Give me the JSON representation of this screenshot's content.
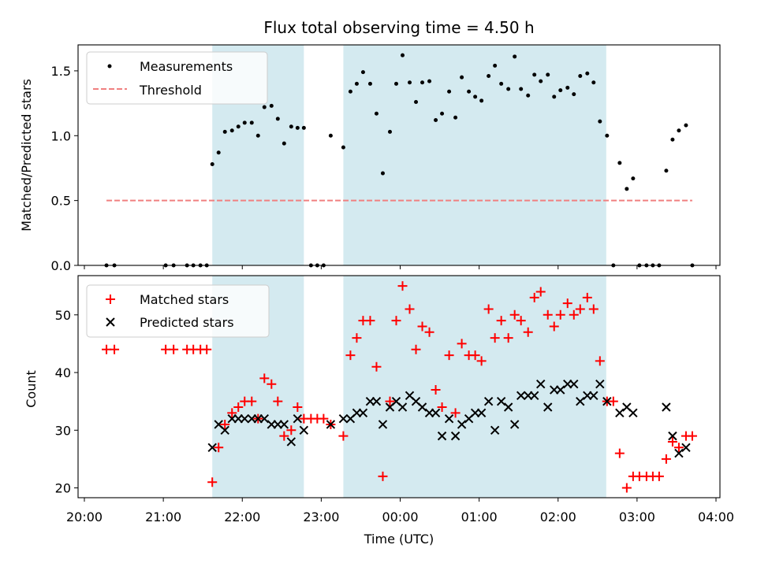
{
  "chart_data": {
    "type": "scatter",
    "title": "Flux total observing time = 4.50 h",
    "x_axis": {
      "label": "Time (UTC)",
      "unit": "hours since 20:00 UTC",
      "range": [
        -0.08,
        8.05
      ],
      "ticks": [
        0,
        1,
        2,
        3,
        4,
        5,
        6,
        7,
        8
      ],
      "tick_labels": [
        "20:00",
        "21:00",
        "22:00",
        "23:00",
        "00:00",
        "01:00",
        "02:00",
        "03:00",
        "04:00"
      ]
    },
    "shaded_intervals": [
      [
        1.62,
        2.78
      ],
      [
        3.28,
        6.61
      ]
    ],
    "top": {
      "ylabel": "Matched/Predicted stars",
      "ylim": [
        0,
        1.7
      ],
      "yticks": [
        0.0,
        0.5,
        1.0,
        1.5
      ],
      "ytick_labels": [
        "0.0",
        "0.5",
        "1.0",
        "1.5"
      ],
      "legend": {
        "measurements": "Measurements",
        "threshold": "Threshold"
      },
      "threshold": {
        "value": 0.5,
        "x_range": [
          0.28,
          7.7
        ],
        "color": "#f08080"
      },
      "measurements": [
        [
          0.28,
          0
        ],
        [
          0.38,
          0
        ],
        [
          1.03,
          0
        ],
        [
          1.13,
          0
        ],
        [
          1.3,
          0
        ],
        [
          1.38,
          0
        ],
        [
          1.47,
          0
        ],
        [
          1.55,
          0
        ],
        [
          1.62,
          0.78
        ],
        [
          1.7,
          0.87
        ],
        [
          1.78,
          1.03
        ],
        [
          1.87,
          1.04
        ],
        [
          1.95,
          1.07
        ],
        [
          2.03,
          1.1
        ],
        [
          2.12,
          1.1
        ],
        [
          2.2,
          1.0
        ],
        [
          2.28,
          1.22
        ],
        [
          2.37,
          1.23
        ],
        [
          2.45,
          1.13
        ],
        [
          2.53,
          0.94
        ],
        [
          2.62,
          1.07
        ],
        [
          2.7,
          1.06
        ],
        [
          2.78,
          1.06
        ],
        [
          2.87,
          0
        ],
        [
          2.95,
          0
        ],
        [
          3.03,
          0
        ],
        [
          3.12,
          1.0
        ],
        [
          3.28,
          0.91
        ],
        [
          3.37,
          1.34
        ],
        [
          3.45,
          1.4
        ],
        [
          3.53,
          1.49
        ],
        [
          3.62,
          1.4
        ],
        [
          3.7,
          1.17
        ],
        [
          3.78,
          0.71
        ],
        [
          3.87,
          1.03
        ],
        [
          3.95,
          1.4
        ],
        [
          4.03,
          1.62
        ],
        [
          4.12,
          1.41
        ],
        [
          4.2,
          1.26
        ],
        [
          4.28,
          1.41
        ],
        [
          4.37,
          1.42
        ],
        [
          4.45,
          1.12
        ],
        [
          4.53,
          1.17
        ],
        [
          4.62,
          1.34
        ],
        [
          4.7,
          1.14
        ],
        [
          4.78,
          1.45
        ],
        [
          4.87,
          1.34
        ],
        [
          4.95,
          1.3
        ],
        [
          5.03,
          1.27
        ],
        [
          5.12,
          1.46
        ],
        [
          5.2,
          1.54
        ],
        [
          5.28,
          1.4
        ],
        [
          5.37,
          1.36
        ],
        [
          5.45,
          1.61
        ],
        [
          5.53,
          1.36
        ],
        [
          5.62,
          1.31
        ],
        [
          5.7,
          1.47
        ],
        [
          5.78,
          1.42
        ],
        [
          5.87,
          1.47
        ],
        [
          5.95,
          1.3
        ],
        [
          6.03,
          1.35
        ],
        [
          6.12,
          1.37
        ],
        [
          6.2,
          1.32
        ],
        [
          6.28,
          1.46
        ],
        [
          6.37,
          1.48
        ],
        [
          6.45,
          1.41
        ],
        [
          6.53,
          1.11
        ],
        [
          6.62,
          1.0
        ],
        [
          6.7,
          0
        ],
        [
          6.78,
          0.79
        ],
        [
          6.87,
          0.59
        ],
        [
          6.95,
          0.67
        ],
        [
          7.03,
          0
        ],
        [
          7.12,
          0
        ],
        [
          7.2,
          0
        ],
        [
          7.28,
          0
        ],
        [
          7.37,
          0.73
        ],
        [
          7.45,
          0.97
        ],
        [
          7.53,
          1.04
        ],
        [
          7.62,
          1.08
        ],
        [
          7.7,
          0
        ]
      ]
    },
    "bottom": {
      "ylabel": "Count",
      "ylim": [
        18.3,
        56.8
      ],
      "yticks": [
        20,
        30,
        40,
        50
      ],
      "ytick_labels": [
        "20",
        "30",
        "40",
        "50"
      ],
      "legend": {
        "matched": "Matched stars",
        "predicted": "Predicted stars"
      },
      "matched": [
        [
          0.28,
          44
        ],
        [
          0.38,
          44
        ],
        [
          1.03,
          44
        ],
        [
          1.13,
          44
        ],
        [
          1.3,
          44
        ],
        [
          1.38,
          44
        ],
        [
          1.47,
          44
        ],
        [
          1.55,
          44
        ],
        [
          1.62,
          21
        ],
        [
          1.7,
          27
        ],
        [
          1.78,
          31
        ],
        [
          1.87,
          33
        ],
        [
          1.95,
          34
        ],
        [
          2.03,
          35
        ],
        [
          2.12,
          35
        ],
        [
          2.2,
          32
        ],
        [
          2.28,
          39
        ],
        [
          2.37,
          38
        ],
        [
          2.45,
          35
        ],
        [
          2.53,
          29
        ],
        [
          2.62,
          30
        ],
        [
          2.7,
          34
        ],
        [
          2.78,
          32
        ],
        [
          2.87,
          32
        ],
        [
          2.95,
          32
        ],
        [
          3.03,
          32
        ],
        [
          3.12,
          31
        ],
        [
          3.28,
          29
        ],
        [
          3.37,
          43
        ],
        [
          3.45,
          46
        ],
        [
          3.53,
          49
        ],
        [
          3.62,
          49
        ],
        [
          3.7,
          41
        ],
        [
          3.78,
          22
        ],
        [
          3.87,
          35
        ],
        [
          3.95,
          49
        ],
        [
          4.03,
          55
        ],
        [
          4.12,
          51
        ],
        [
          4.2,
          44
        ],
        [
          4.28,
          48
        ],
        [
          4.37,
          47
        ],
        [
          4.45,
          37
        ],
        [
          4.53,
          34
        ],
        [
          4.62,
          43
        ],
        [
          4.7,
          33
        ],
        [
          4.78,
          45
        ],
        [
          4.87,
          43
        ],
        [
          4.95,
          43
        ],
        [
          5.03,
          42
        ],
        [
          5.12,
          51
        ],
        [
          5.2,
          46
        ],
        [
          5.28,
          49
        ],
        [
          5.37,
          46
        ],
        [
          5.45,
          50
        ],
        [
          5.53,
          49
        ],
        [
          5.62,
          47
        ],
        [
          5.7,
          53
        ],
        [
          5.78,
          54
        ],
        [
          5.87,
          50
        ],
        [
          5.95,
          48
        ],
        [
          6.03,
          50
        ],
        [
          6.12,
          52
        ],
        [
          6.2,
          50
        ],
        [
          6.28,
          51
        ],
        [
          6.37,
          53
        ],
        [
          6.45,
          51
        ],
        [
          6.53,
          42
        ],
        [
          6.62,
          35
        ],
        [
          6.7,
          35
        ],
        [
          6.78,
          26
        ],
        [
          6.87,
          20
        ],
        [
          6.95,
          22
        ],
        [
          7.03,
          22
        ],
        [
          7.12,
          22
        ],
        [
          7.2,
          22
        ],
        [
          7.28,
          22
        ],
        [
          7.37,
          25
        ],
        [
          7.45,
          28
        ],
        [
          7.53,
          27
        ],
        [
          7.62,
          29
        ],
        [
          7.7,
          29
        ]
      ],
      "predicted": [
        [
          1.62,
          27
        ],
        [
          1.7,
          31
        ],
        [
          1.78,
          30
        ],
        [
          1.87,
          32
        ],
        [
          1.95,
          32
        ],
        [
          2.03,
          32
        ],
        [
          2.12,
          32
        ],
        [
          2.2,
          32
        ],
        [
          2.28,
          32
        ],
        [
          2.37,
          31
        ],
        [
          2.45,
          31
        ],
        [
          2.53,
          31
        ],
        [
          2.62,
          28
        ],
        [
          2.7,
          32
        ],
        [
          2.78,
          30
        ],
        [
          3.12,
          31
        ],
        [
          3.28,
          32
        ],
        [
          3.37,
          32
        ],
        [
          3.45,
          33
        ],
        [
          3.53,
          33
        ],
        [
          3.62,
          35
        ],
        [
          3.7,
          35
        ],
        [
          3.78,
          31
        ],
        [
          3.87,
          34
        ],
        [
          3.95,
          35
        ],
        [
          4.03,
          34
        ],
        [
          4.12,
          36
        ],
        [
          4.2,
          35
        ],
        [
          4.28,
          34
        ],
        [
          4.37,
          33
        ],
        [
          4.45,
          33
        ],
        [
          4.53,
          29
        ],
        [
          4.62,
          32
        ],
        [
          4.7,
          29
        ],
        [
          4.78,
          31
        ],
        [
          4.87,
          32
        ],
        [
          4.95,
          33
        ],
        [
          5.03,
          33
        ],
        [
          5.12,
          35
        ],
        [
          5.2,
          30
        ],
        [
          5.28,
          35
        ],
        [
          5.37,
          34
        ],
        [
          5.45,
          31
        ],
        [
          5.53,
          36
        ],
        [
          5.62,
          36
        ],
        [
          5.7,
          36
        ],
        [
          5.78,
          38
        ],
        [
          5.87,
          34
        ],
        [
          5.95,
          37
        ],
        [
          6.03,
          37
        ],
        [
          6.12,
          38
        ],
        [
          6.2,
          38
        ],
        [
          6.28,
          35
        ],
        [
          6.37,
          36
        ],
        [
          6.45,
          36
        ],
        [
          6.53,
          38
        ],
        [
          6.62,
          35
        ],
        [
          6.78,
          33
        ],
        [
          6.87,
          34
        ],
        [
          6.95,
          33
        ],
        [
          7.37,
          34
        ],
        [
          7.45,
          29
        ],
        [
          7.53,
          26
        ],
        [
          7.62,
          27
        ]
      ]
    },
    "colors": {
      "shade": "#d4eaf0",
      "matched": "#ff0000",
      "predicted": "#000000",
      "measurement": "#000000",
      "threshold": "#f08080",
      "legend_border": "#cccccc"
    }
  }
}
